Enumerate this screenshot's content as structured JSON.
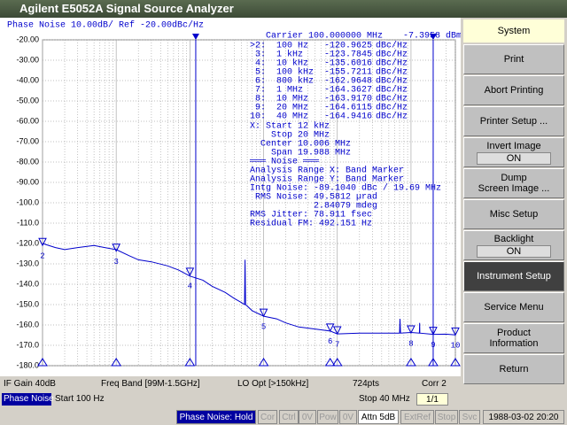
{
  "window_title": "Agilent E5052A Signal Source Analyzer",
  "chart_data": {
    "type": "line",
    "title": "Phase Noise 10.00dB/ Ref -20.00dBc/Hz",
    "carrier": "Carrier 100.000000 MHz",
    "carrier_power": "-7.3958 dBm",
    "xscale": "log",
    "xlim": [
      100,
      40000000
    ],
    "ylim": [
      -180,
      -20
    ],
    "yticks": [
      {
        "value": -20,
        "label": "-20.00"
      },
      {
        "value": -30,
        "label": "-30.00"
      },
      {
        "value": -40,
        "label": "-40.00"
      },
      {
        "value": -50,
        "label": "-50.00"
      },
      {
        "value": -60,
        "label": "-60.00"
      },
      {
        "value": -70,
        "label": "-70.00"
      },
      {
        "value": -80,
        "label": "-80.00"
      },
      {
        "value": -90,
        "label": "-90.00"
      },
      {
        "value": -100,
        "label": "-100.0"
      },
      {
        "value": -110,
        "label": "-110.0"
      },
      {
        "value": -120,
        "label": "-120.0"
      },
      {
        "value": -130,
        "label": "-130.0"
      },
      {
        "value": -140,
        "label": "-140.0"
      },
      {
        "value": -150,
        "label": "-150.0"
      },
      {
        "value": -160,
        "label": "-160.0"
      },
      {
        "value": -170,
        "label": "-170.0"
      },
      {
        "value": -180,
        "label": "-180.0"
      }
    ],
    "grid": true,
    "color": "#0000cc",
    "series": [
      {
        "x": [
          100,
          150,
          200,
          300,
          500,
          700,
          1000,
          1500,
          2000,
          3000,
          5000,
          7000,
          10000,
          15000,
          20000,
          30000,
          40000,
          50000,
          55000,
          56000,
          57000,
          70000,
          100000,
          150000,
          200000,
          300000,
          500000,
          800000,
          1000000,
          2000000,
          5000000,
          7000000,
          7100000,
          7200000,
          10000000,
          13000000,
          13100000,
          13200000,
          20000000,
          30000000,
          40000000
        ],
        "values": [
          -120,
          -122,
          -123,
          -122,
          -121,
          -122,
          -123,
          -126,
          -128,
          -129,
          -131,
          -133,
          -136,
          -138,
          -141,
          -144,
          -147,
          -149,
          -150,
          -128,
          -150,
          -153,
          -155.7,
          -157,
          -159,
          -161,
          -162,
          -163,
          -164.4,
          -164,
          -164,
          -164,
          -157,
          -164,
          -163.7,
          -164,
          -159,
          -164,
          -164.6,
          -164.5,
          -164.9
        ]
      }
    ],
    "band_markers": [
      12000,
      20000000
    ],
    "markers": [
      {
        "label": "2",
        "x": 100,
        "y": -120.9625
      },
      {
        "label": "3",
        "x": 1000,
        "y": -123.7845
      },
      {
        "label": "4",
        "x": 10000,
        "y": -135.6016
      },
      {
        "label": "5",
        "x": 100000,
        "y": -155.7211
      },
      {
        "label": "6",
        "x": 800000,
        "y": -162.9648
      },
      {
        "label": "7",
        "x": 1000000,
        "y": -164.3627
      },
      {
        "label": "8",
        "x": 10000000,
        "y": -163.917
      },
      {
        "label": "9",
        "x": 20000000,
        "y": -164.6115
      },
      {
        "label": "10",
        "x": 40000000,
        "y": -164.9416
      }
    ]
  },
  "marker_table": [
    [
      ">2:",
      "100 Hz",
      "-120.9625",
      "dBc/Hz"
    ],
    [
      "3:",
      "1 kHz",
      "-123.7845",
      "dBc/Hz"
    ],
    [
      "4:",
      "10 kHz",
      "-135.6016",
      "dBc/Hz"
    ],
    [
      "5:",
      "100 kHz",
      "-155.7211",
      "dBc/Hz"
    ],
    [
      "6:",
      "800 kHz",
      "-162.9648",
      "dBc/Hz"
    ],
    [
      "7:",
      "1 MHz",
      "-164.3627",
      "dBc/Hz"
    ],
    [
      "8:",
      "10 MHz",
      "-163.9170",
      "dBc/Hz"
    ],
    [
      "9:",
      "20 MHz",
      "-164.6115",
      "dBc/Hz"
    ],
    [
      "10:",
      "40 MHz",
      "-164.9416",
      "dBc/Hz"
    ]
  ],
  "analysis": [
    "X: Start 12 kHz",
    "    Stop 20 MHz",
    "  Center 10.006 MHz",
    "    Span 19.988 MHz",
    "═══ Noise ═══",
    "Analysis Range X: Band Marker",
    "Analysis Range Y: Band Marker",
    "Intg Noise: -89.1040 dBc / 19.69 MHz",
    " RMS Noise: 49.5812 µrad",
    "            2.84079 mdeg",
    "RMS Jitter: 78.911 fsec",
    "Residual FM: 492.151 Hz"
  ],
  "softkey_header": "System",
  "softkeys": [
    {
      "lines": [
        "Print"
      ]
    },
    {
      "lines": [
        "Abort Printing"
      ]
    },
    {
      "lines": [
        "Printer Setup ..."
      ]
    },
    {
      "lines": [
        "Invert Image"
      ],
      "state": "ON"
    },
    {
      "lines": [
        "Dump",
        "Screen Image ..."
      ]
    },
    {
      "lines": [
        "Misc Setup"
      ]
    },
    {
      "lines": [
        "Backlight"
      ],
      "state": "ON"
    },
    {
      "lines": [
        "Instrument Setup"
      ]
    },
    {
      "lines": [
        "Service Menu"
      ]
    },
    {
      "lines": [
        "Product",
        "Information"
      ]
    },
    {
      "lines": [
        "Return"
      ]
    }
  ],
  "info_bar": [
    "IF Gain 40dB",
    "Freq Band [99M-1.5GHz]",
    "LO Opt [>150kHz]",
    "724pts",
    "Corr 2"
  ],
  "sweep_bar": {
    "mode": "Phase Noise",
    "start": "Start 100 Hz",
    "stop": "Stop 40 MHz",
    "page": "1/1"
  },
  "status_bar": [
    "Phase Noise: Hold",
    "Cor",
    "Ctrl",
    "0V",
    "Pow",
    "0V",
    "Attn 5dB",
    "ExtRef",
    "Stop",
    "Svc",
    "1988-03-02 20:20"
  ]
}
